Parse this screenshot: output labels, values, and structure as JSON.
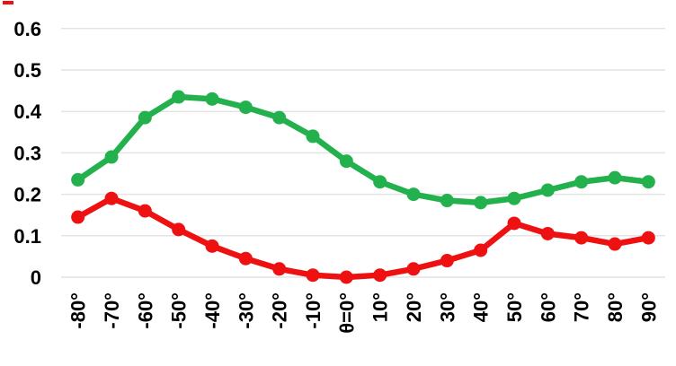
{
  "chart_data": {
    "type": "line",
    "title": "",
    "xlabel": "",
    "ylabel": "",
    "categories": [
      "-80°",
      "-70°",
      "-60°",
      "-50°",
      "-40°",
      "-30°",
      "-20°",
      "-10°",
      "θ=0°",
      "10°",
      "20°",
      "30°",
      "40°",
      "50°",
      "60°",
      "70°",
      "80°",
      "90°"
    ],
    "series": [
      {
        "name": "green-series",
        "color": "#23B14D",
        "values": [
          0.235,
          0.29,
          0.385,
          0.435,
          0.43,
          0.41,
          0.385,
          0.34,
          0.28,
          0.23,
          0.2,
          0.185,
          0.18,
          0.19,
          0.21,
          0.23,
          0.24,
          0.23
        ]
      },
      {
        "name": "red-series",
        "color": "#EE1111",
        "values": [
          0.145,
          0.19,
          0.16,
          0.115,
          0.075,
          0.045,
          0.02,
          0.005,
          0.0,
          0.005,
          0.02,
          0.04,
          0.065,
          0.13,
          0.105,
          0.095,
          0.08,
          0.095
        ]
      }
    ],
    "ylim": [
      0,
      0.6
    ],
    "ytick_values": [
      0,
      0.1,
      0.2,
      0.3,
      0.4,
      0.5,
      0.6
    ],
    "ytick_labels": [
      "0",
      "0.1",
      "0.2",
      "0.3",
      "0.4",
      "0.5",
      "0.6"
    ],
    "grid": true,
    "gridline_color": "#e4e4e4",
    "legend_position": "none",
    "x_labels_rotation_deg": -90
  },
  "decorations": {
    "stray_red_dash_color": "#EE1111"
  }
}
